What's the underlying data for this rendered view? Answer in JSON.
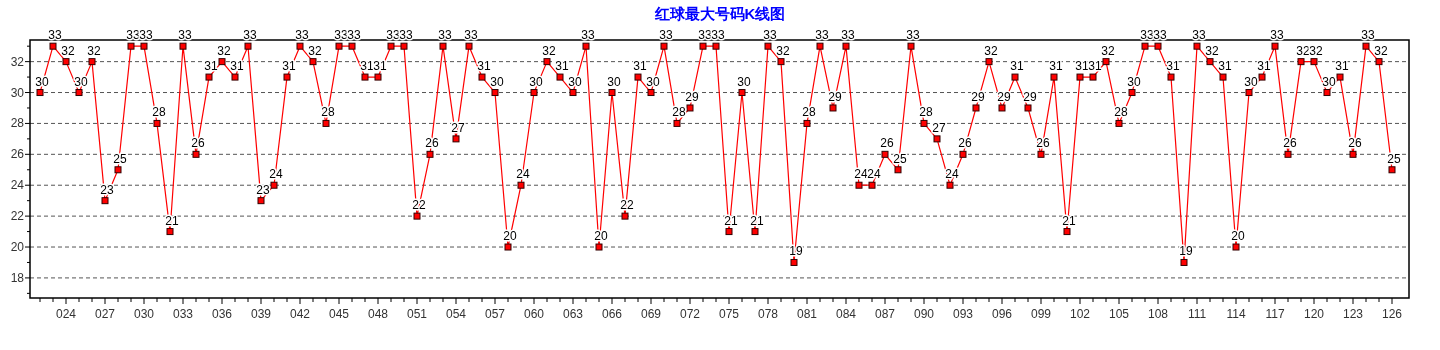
{
  "chart_data": {
    "type": "line",
    "title": "红球最大号码K线图",
    "categories": [
      null,
      null,
      "024",
      null,
      null,
      "027",
      null,
      null,
      "030",
      null,
      null,
      "033",
      null,
      null,
      "036",
      null,
      null,
      "039",
      null,
      null,
      "042",
      null,
      null,
      "045",
      null,
      null,
      "048",
      null,
      null,
      "051",
      null,
      null,
      "054",
      null,
      null,
      "057",
      null,
      null,
      "060",
      null,
      null,
      "063",
      null,
      null,
      "066",
      null,
      null,
      "069",
      null,
      null,
      "072",
      null,
      null,
      "075",
      null,
      null,
      "078",
      null,
      null,
      "081",
      null,
      null,
      "084",
      null,
      null,
      "087",
      null,
      null,
      "090",
      null,
      null,
      "093",
      null,
      null,
      "096",
      null,
      null,
      "099",
      null,
      null,
      "102",
      null,
      null,
      "105",
      null,
      null,
      "108",
      null,
      null,
      "111",
      null,
      null,
      "114",
      null,
      null,
      "117",
      null,
      null,
      "120",
      null,
      null,
      "123",
      null,
      null,
      "126"
    ],
    "series": [
      {
        "color": "#ff0000",
        "values": [
          30,
          33,
          32,
          30,
          32,
          23,
          25,
          33,
          33,
          28,
          21,
          33,
          26,
          31,
          32,
          31,
          33,
          23,
          24,
          31,
          33,
          32,
          28,
          33,
          33,
          31,
          31,
          33,
          33,
          22,
          26,
          33,
          27,
          33,
          31,
          30,
          20,
          24,
          30,
          32,
          31,
          30,
          33,
          20,
          30,
          22,
          31,
          30,
          33,
          28,
          29,
          33,
          33,
          21,
          30,
          21,
          33,
          32,
          19,
          28,
          33,
          29,
          33,
          24,
          24,
          26,
          25,
          33,
          28,
          27,
          24,
          26,
          29,
          32,
          29,
          31,
          29,
          26,
          31,
          21,
          31,
          31,
          32,
          28,
          30,
          33,
          33,
          31,
          19,
          33,
          32,
          31,
          20,
          30,
          31,
          33,
          26,
          32,
          32,
          30,
          31,
          26,
          33,
          32,
          25
        ]
      }
    ],
    "ylim": [
      16.7,
      33.4
    ],
    "yticks": [
      {
        "value": 17,
        "label": null
      },
      18,
      {
        "value": 19,
        "label": null
      },
      20,
      {
        "value": 21,
        "label": null
      },
      22,
      {
        "value": 23,
        "label": null
      },
      24,
      {
        "value": 25,
        "label": null
      },
      26,
      {
        "value": 27,
        "label": null
      },
      28,
      {
        "value": 29,
        "label": null
      },
      30,
      {
        "value": 31,
        "label": null
      },
      32,
      {
        "value": 33,
        "label": null
      }
    ],
    "grid": "y",
    "marker": "square",
    "line_style": "solid",
    "data_labels": true
  }
}
